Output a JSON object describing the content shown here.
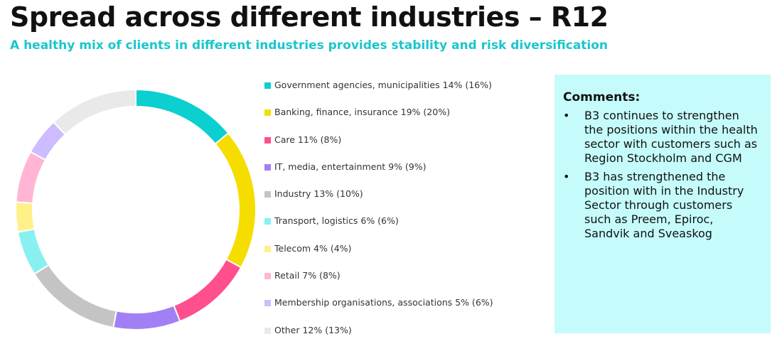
{
  "title": "Spread across different industries – R12",
  "subtitle": "A healthy mix of clients in different industries provides stability and risk diversification",
  "chart_data": {
    "type": "pie",
    "variant": "donut",
    "legend_position": "right",
    "categories": [
      "Government agencies, municipalities",
      "Banking, finance, insurance",
      "Care",
      "IT, media, entertainment",
      "Industry",
      "Transport, logistics",
      "Telecom",
      "Retail",
      "Membership organisations, associations",
      "Other"
    ],
    "values": [
      14,
      19,
      11,
      9,
      13,
      6,
      4,
      7,
      5,
      12
    ],
    "previous_values": [
      16,
      20,
      8,
      9,
      10,
      6,
      4,
      8,
      6,
      13
    ],
    "colors": [
      "#0ccfcf",
      "#f5dd00",
      "#ff4f8e",
      "#a180f5",
      "#c4c4c4",
      "#88f0f0",
      "#fff08a",
      "#ffb5d3",
      "#cdbcff",
      "#e9e9e9"
    ],
    "legend_labels": [
      "Government agencies, municipalities 14% (16%)",
      "Banking, finance, insurance 19% (20%)",
      "Care 11% (8%)",
      "IT, media, entertainment 9% (9%)",
      "Industry 13% (10%)",
      "Transport, logistics 6% (6%)",
      "Telecom 4% (4%)",
      "Retail 7% (8%)",
      "Membership organisations, associations 5% (6%)",
      "Other 12% (13%)"
    ]
  },
  "comments": {
    "title": "Comments:",
    "bullet": "•",
    "items": [
      "B3 continues to strengthen the positions within the health sector with customers such as Region Stockholm and CGM",
      "B3 has strengthened the position with in the Industry Sector through customers such as Preem, Epiroc, Sandvik and Sveaskog"
    ],
    "background": "#c5fbfb"
  },
  "accent_color": "#19c6cc"
}
